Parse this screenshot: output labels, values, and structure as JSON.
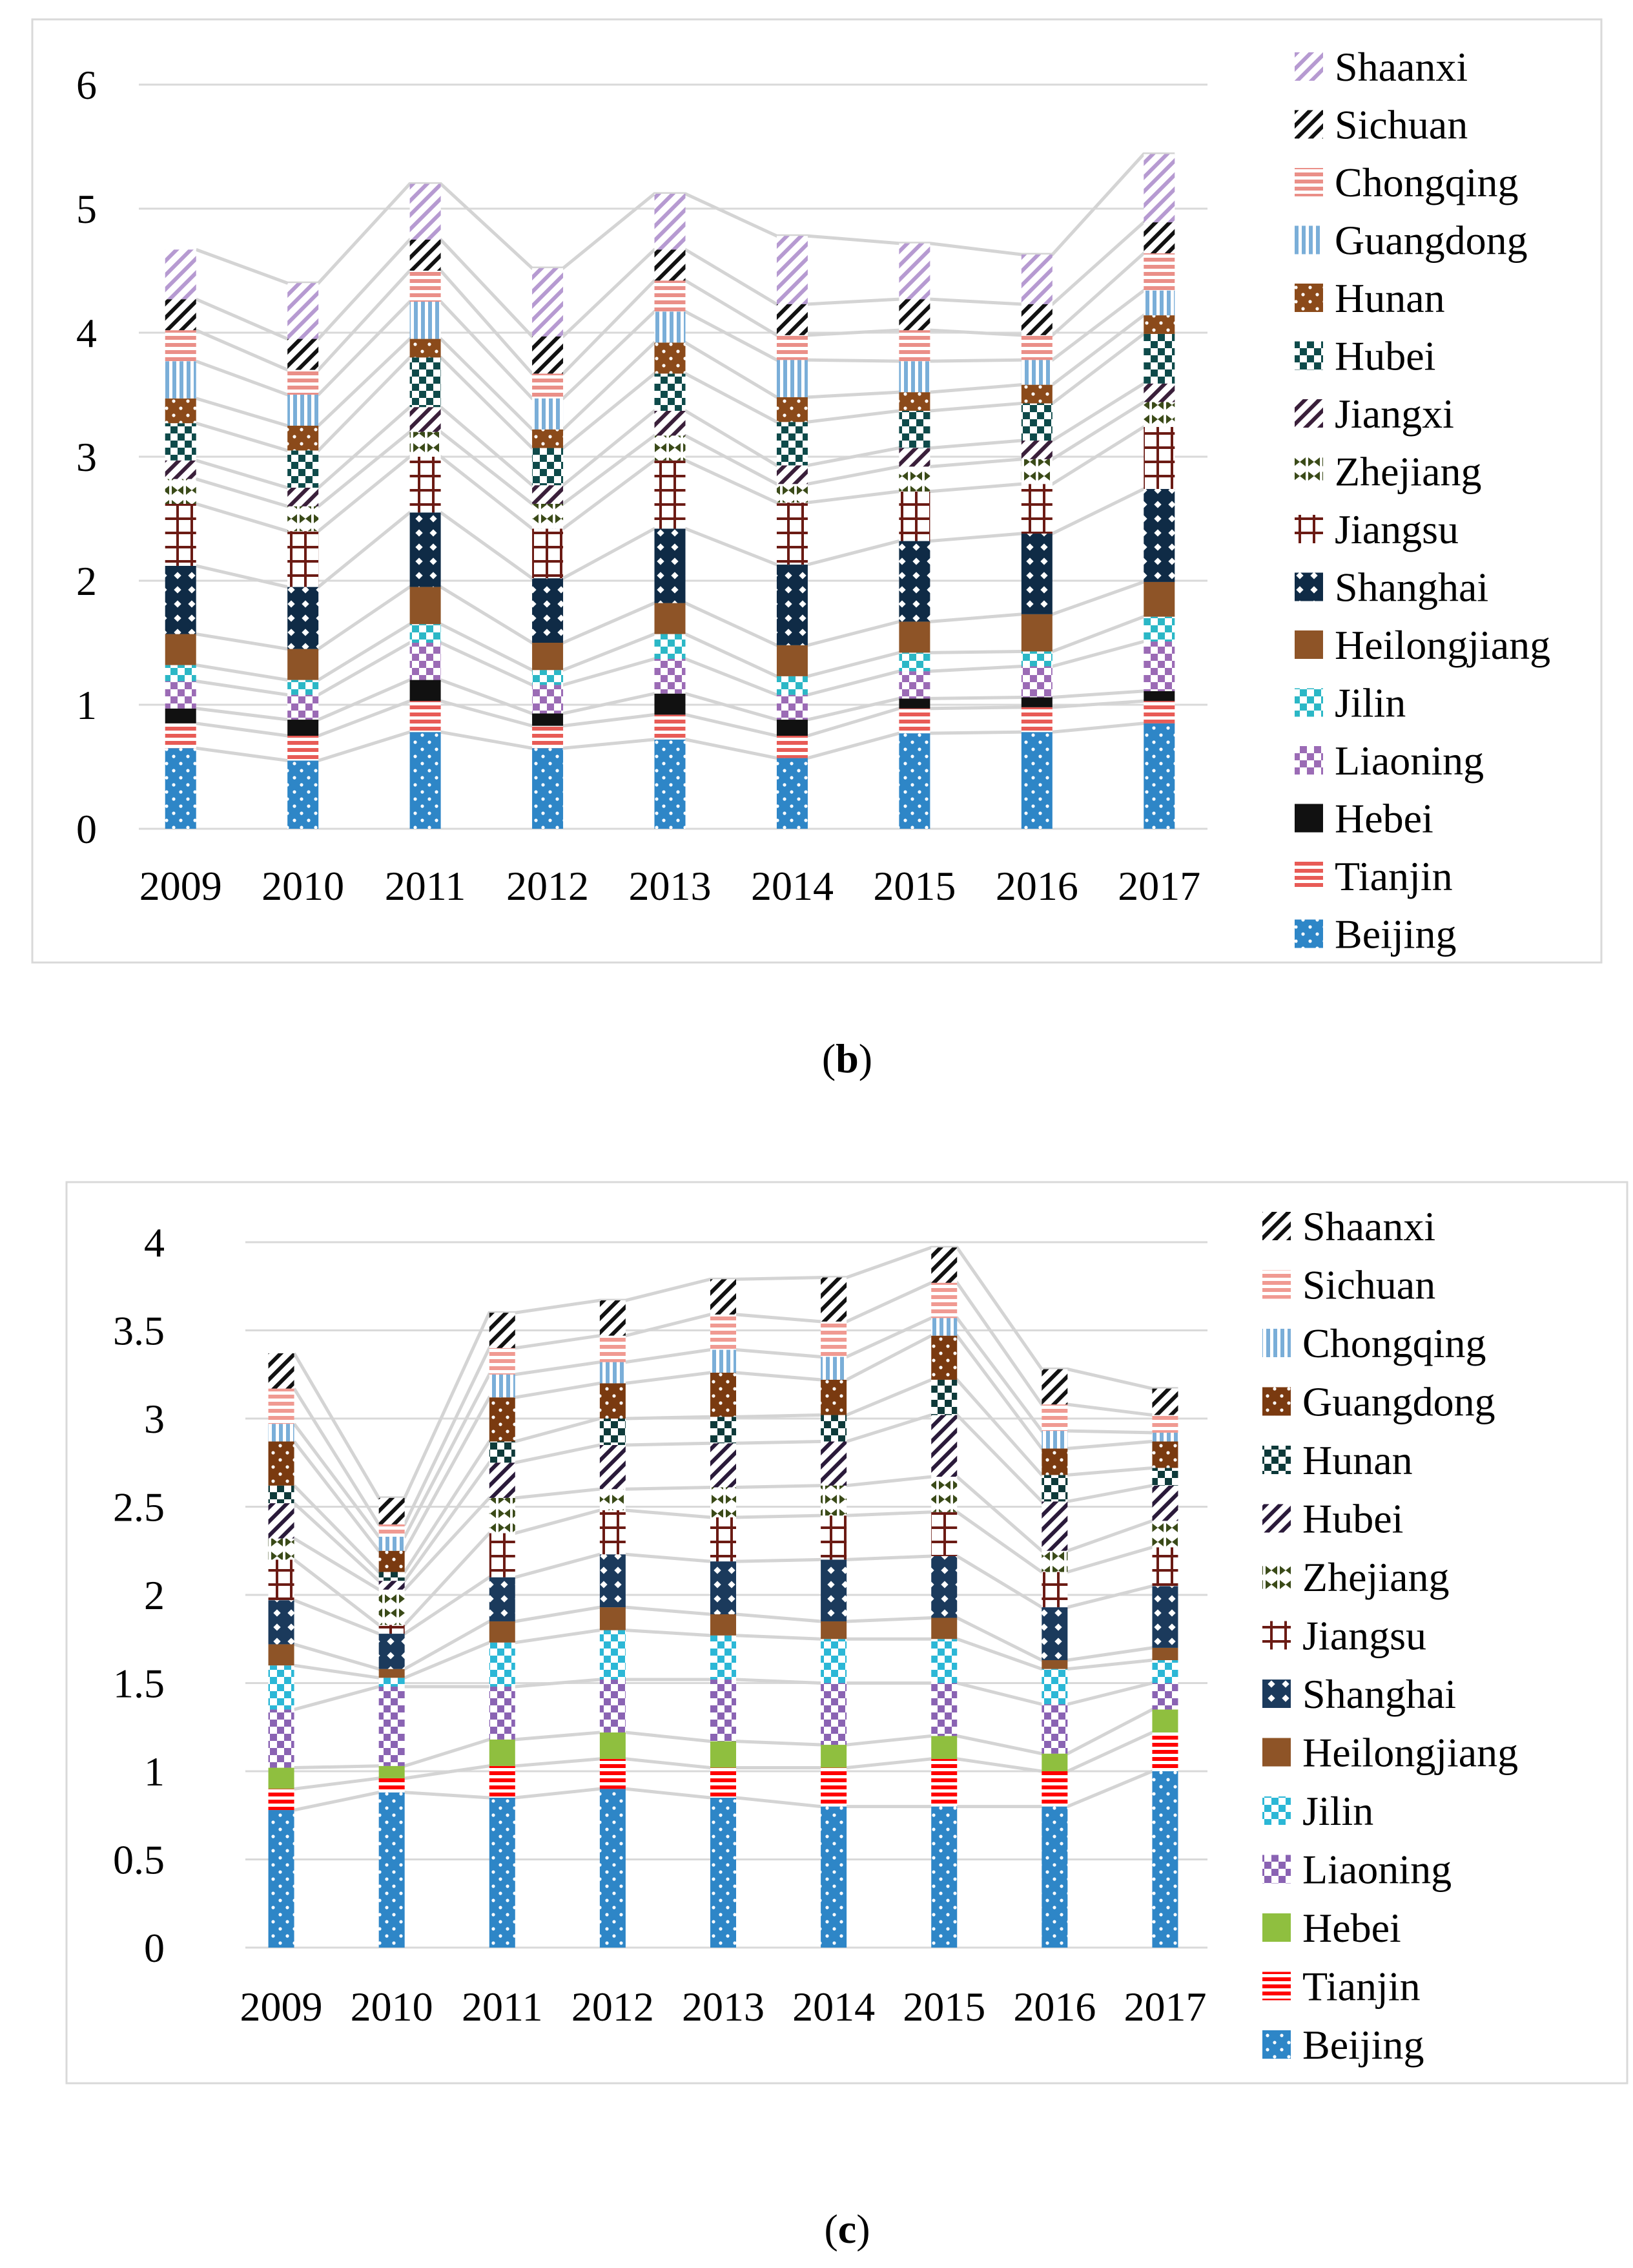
{
  "chart_data": [
    {
      "type": "bar",
      "stacked": true,
      "panel": "b",
      "caption_open": "(",
      "caption_letter": "b",
      "caption_close": ")",
      "categories": [
        "2009",
        "2010",
        "2011",
        "2012",
        "2013",
        "2014",
        "2015",
        "2016",
        "2017"
      ],
      "ylim": [
        0,
        6
      ],
      "yticks": [
        0,
        1,
        2,
        3,
        4,
        5,
        6
      ],
      "grid": true,
      "legend_position": "right",
      "legend_order": "top-down reversed (Shaanxi first)",
      "series": [
        {
          "name": "Beijing",
          "color": "#2e86c7",
          "values": [
            0.65,
            0.55,
            0.78,
            0.65,
            0.72,
            0.57,
            0.77,
            0.78,
            0.85
          ]
        },
        {
          "name": "Tianjin",
          "color": "#e85b56",
          "values": [
            0.2,
            0.2,
            0.25,
            0.18,
            0.2,
            0.18,
            0.2,
            0.2,
            0.18
          ]
        },
        {
          "name": "Hebei",
          "color": "#111111",
          "values": [
            0.12,
            0.13,
            0.17,
            0.1,
            0.17,
            0.13,
            0.08,
            0.08,
            0.08
          ]
        },
        {
          "name": "Liaoning",
          "color": "#9b6bb5",
          "values": [
            0.22,
            0.2,
            0.3,
            0.23,
            0.28,
            0.2,
            0.22,
            0.25,
            0.4
          ]
        },
        {
          "name": "Jilin",
          "color": "#2bb7c6",
          "values": [
            0.13,
            0.12,
            0.15,
            0.12,
            0.2,
            0.15,
            0.15,
            0.12,
            0.2
          ]
        },
        {
          "name": "Heilongjiang",
          "color": "#8e5427",
          "values": [
            0.25,
            0.25,
            0.3,
            0.22,
            0.25,
            0.25,
            0.25,
            0.3,
            0.28
          ]
        },
        {
          "name": "Shanghai",
          "color": "#0f2b46",
          "values": [
            0.55,
            0.5,
            0.6,
            0.52,
            0.6,
            0.65,
            0.65,
            0.65,
            0.75
          ]
        },
        {
          "name": "Jiangsu",
          "color": "#6b1b14",
          "values": [
            0.5,
            0.45,
            0.45,
            0.4,
            0.55,
            0.5,
            0.4,
            0.4,
            0.5
          ]
        },
        {
          "name": "Zhejiang",
          "color": "#3a4a18",
          "values": [
            0.2,
            0.2,
            0.2,
            0.2,
            0.2,
            0.15,
            0.2,
            0.2,
            0.2
          ]
        },
        {
          "name": "Jiangxi",
          "color": "#3a1f3a",
          "values": [
            0.15,
            0.15,
            0.2,
            0.15,
            0.2,
            0.15,
            0.15,
            0.15,
            0.15
          ]
        },
        {
          "name": "Hubei",
          "color": "#0e4a4a",
          "values": [
            0.3,
            0.3,
            0.4,
            0.3,
            0.3,
            0.35,
            0.3,
            0.3,
            0.4
          ]
        },
        {
          "name": "Hunan",
          "color": "#8b4a1a",
          "values": [
            0.2,
            0.2,
            0.15,
            0.15,
            0.25,
            0.2,
            0.15,
            0.15,
            0.15
          ]
        },
        {
          "name": "Guangdong",
          "color": "#7aaed8",
          "values": [
            0.3,
            0.25,
            0.3,
            0.25,
            0.25,
            0.3,
            0.25,
            0.2,
            0.2
          ]
        },
        {
          "name": "Chongqing",
          "color": "#ea8f88",
          "values": [
            0.25,
            0.2,
            0.25,
            0.2,
            0.25,
            0.2,
            0.25,
            0.2,
            0.3
          ]
        },
        {
          "name": "Sichuan",
          "color": "#111111",
          "values": [
            0.25,
            0.25,
            0.25,
            0.3,
            0.25,
            0.25,
            0.25,
            0.25,
            0.25
          ]
        },
        {
          "name": "Shaanxi",
          "color": "#b69ad1",
          "values": [
            0.4,
            0.45,
            0.45,
            0.55,
            0.45,
            0.55,
            0.45,
            0.4,
            0.55
          ]
        }
      ]
    },
    {
      "type": "bar",
      "stacked": true,
      "panel": "c",
      "caption_open": "(",
      "caption_letter": "c",
      "caption_close": ")",
      "categories": [
        "2009",
        "2010",
        "2011",
        "2012",
        "2013",
        "2014",
        "2015",
        "2016",
        "2017"
      ],
      "ylim": [
        0,
        4
      ],
      "yticks": [
        0,
        0.5,
        1,
        1.5,
        2,
        2.5,
        3,
        3.5,
        4
      ],
      "grid": true,
      "legend_position": "right",
      "legend_order": "top-down reversed (Shaanxi first)",
      "series": [
        {
          "name": "Beijing",
          "color": "#2e86c7",
          "values": [
            0.78,
            0.88,
            0.85,
            0.9,
            0.85,
            0.8,
            0.8,
            0.8,
            1.0
          ]
        },
        {
          "name": "Tianjin",
          "color": "#ff0000",
          "values": [
            0.12,
            0.08,
            0.18,
            0.17,
            0.17,
            0.22,
            0.27,
            0.2,
            0.22
          ]
        },
        {
          "name": "Hebei",
          "color": "#8fbf3f",
          "values": [
            0.12,
            0.07,
            0.15,
            0.15,
            0.15,
            0.13,
            0.13,
            0.1,
            0.13
          ]
        },
        {
          "name": "Liaoning",
          "color": "#8a63b3",
          "values": [
            0.33,
            0.45,
            0.3,
            0.3,
            0.35,
            0.35,
            0.3,
            0.28,
            0.15
          ]
        },
        {
          "name": "Jilin",
          "color": "#2bb7d6",
          "values": [
            0.25,
            0.05,
            0.25,
            0.28,
            0.25,
            0.25,
            0.25,
            0.2,
            0.13
          ]
        },
        {
          "name": "Heilongjiang",
          "color": "#8e5427",
          "values": [
            0.12,
            0.05,
            0.12,
            0.13,
            0.12,
            0.1,
            0.12,
            0.05,
            0.07
          ]
        },
        {
          "name": "Shanghai",
          "color": "#1b3a5c",
          "values": [
            0.25,
            0.2,
            0.25,
            0.3,
            0.3,
            0.35,
            0.35,
            0.3,
            0.35
          ]
        },
        {
          "name": "Jiangsu",
          "color": "#6b1b14",
          "values": [
            0.23,
            0.05,
            0.25,
            0.25,
            0.25,
            0.25,
            0.25,
            0.2,
            0.22
          ]
        },
        {
          "name": "Zhejiang",
          "color": "#3a4a18",
          "values": [
            0.12,
            0.2,
            0.2,
            0.12,
            0.17,
            0.17,
            0.2,
            0.12,
            0.15
          ]
        },
        {
          "name": "Hubei",
          "color": "#2a1a3a",
          "values": [
            0.2,
            0.05,
            0.2,
            0.25,
            0.25,
            0.25,
            0.35,
            0.28,
            0.2
          ]
        },
        {
          "name": "Hunan",
          "color": "#0e3a3a",
          "values": [
            0.1,
            0.05,
            0.12,
            0.15,
            0.15,
            0.15,
            0.2,
            0.15,
            0.1
          ]
        },
        {
          "name": "Guangdong",
          "color": "#7a3a10",
          "values": [
            0.25,
            0.12,
            0.25,
            0.2,
            0.25,
            0.2,
            0.25,
            0.15,
            0.15
          ]
        },
        {
          "name": "Chongqing",
          "color": "#7aaed8",
          "values": [
            0.1,
            0.08,
            0.13,
            0.12,
            0.13,
            0.13,
            0.1,
            0.1,
            0.05
          ]
        },
        {
          "name": "Sichuan",
          "color": "#f09a92",
          "values": [
            0.2,
            0.07,
            0.15,
            0.15,
            0.2,
            0.2,
            0.2,
            0.15,
            0.1
          ]
        },
        {
          "name": "Shaanxi",
          "color": "#111111",
          "values": [
            0.2,
            0.15,
            0.2,
            0.2,
            0.2,
            0.25,
            0.2,
            0.2,
            0.15
          ]
        }
      ]
    }
  ]
}
